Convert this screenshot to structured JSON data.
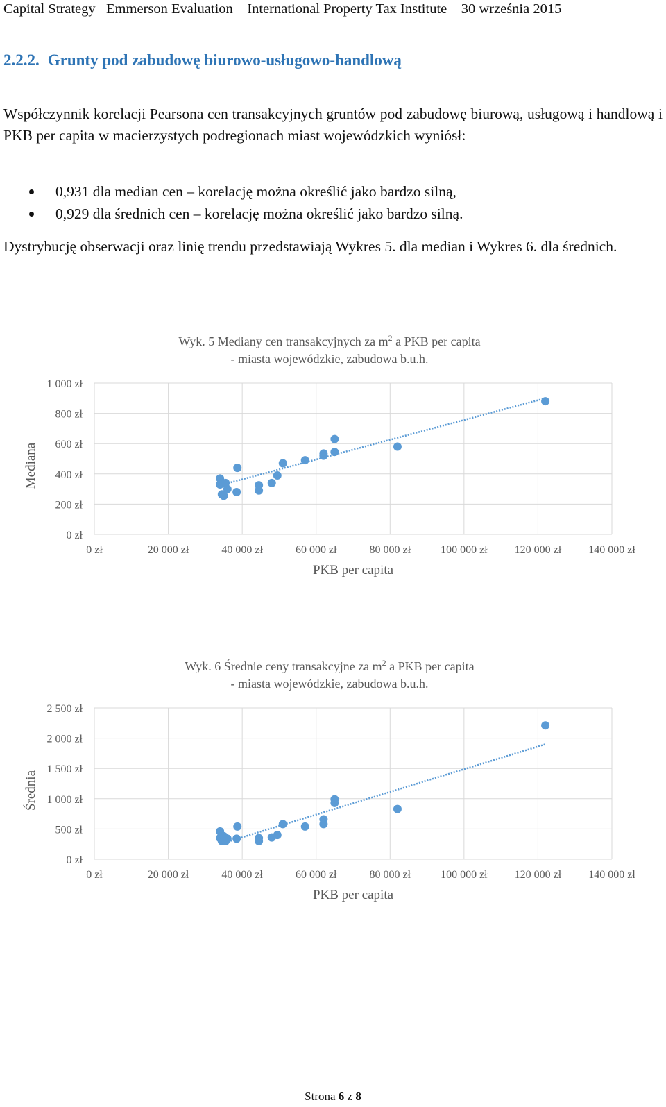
{
  "header": {
    "text": "Capital Strategy –Emmerson Evaluation – International Property Tax Institute  – 30 września 2015"
  },
  "section": {
    "number": "2.2.2.",
    "title": "Grunty pod zabudowę biurowo-usługowo-handlową"
  },
  "paragraph1": "Współczynnik korelacji Pearsona cen transakcyjnych gruntów pod zabudowę biurową, usługową i handlową i PKB per capita w macierzystych podregionach miast wojewódzkich wyniósł:",
  "bullets": [
    "0,931 dla median cen – korelację można określić jako bardzo silną,",
    "0,929 dla średnich cen – korelację można określić jako bardzo silną."
  ],
  "paragraph2": "Dystrybucję obserwacji oraz linię trendu przedstawiają Wykres 5. dla median i Wykres 6. dla średnich.",
  "footer": {
    "prefix": "Strona ",
    "page": "6",
    "middle": " z ",
    "total": "8"
  },
  "colors": {
    "section_title": "#2e74b5",
    "marker": "#5b9bd5",
    "grid": "#d9d9d9",
    "axis_text": "#595959"
  },
  "chart_data": [
    {
      "type": "scatter",
      "title_line1_before": "Wyk. 5 Mediany cen transakcyjnych za m",
      "title_sup": "2",
      "title_line1_after": " a PKB per capita",
      "title_line2": "- miasta wojewódzkie, zabudowa b.u.h.",
      "xlabel": "PKB per capita",
      "ylabel": "Mediana",
      "xlim": [
        0,
        140000
      ],
      "ylim": [
        0,
        1000
      ],
      "x_ticks": [
        0,
        20000,
        40000,
        60000,
        80000,
        100000,
        120000,
        140000
      ],
      "x_tick_labels": [
        "0 zł",
        "20 000 zł",
        "40 000 zł",
        "60 000 zł",
        "80 000 zł",
        "100 000 zł",
        "120 000 zł",
        "140 000 zł"
      ],
      "y_ticks": [
        0,
        200,
        400,
        600,
        800,
        1000
      ],
      "y_tick_labels": [
        "0 zł",
        "200 zł",
        "400 zł",
        "600 zł",
        "800 zł",
        "1 000 zł"
      ],
      "points": [
        [
          34000,
          370
        ],
        [
          34000,
          330
        ],
        [
          34500,
          265
        ],
        [
          35000,
          255
        ],
        [
          35500,
          340
        ],
        [
          36000,
          300
        ],
        [
          38500,
          280
        ],
        [
          38700,
          440
        ],
        [
          44500,
          325
        ],
        [
          44500,
          290
        ],
        [
          48000,
          340
        ],
        [
          49500,
          390
        ],
        [
          51000,
          470
        ],
        [
          57000,
          490
        ],
        [
          62000,
          535
        ],
        [
          62000,
          520
        ],
        [
          65000,
          630
        ],
        [
          65000,
          545
        ],
        [
          82000,
          580
        ],
        [
          122000,
          880
        ]
      ],
      "trendline": {
        "x": [
          34000,
          122000
        ],
        "y": [
          325,
          900
        ]
      }
    },
    {
      "type": "scatter",
      "title_line1_before": "Wyk. 6 Średnie ceny transakcyjne za m",
      "title_sup": "2",
      "title_line1_after": " a PKB per capita",
      "title_line2": "- miasta wojewódzkie, zabudowa b.u.h.",
      "xlabel": "PKB per capita",
      "ylabel": "Średnia",
      "xlim": [
        0,
        140000
      ],
      "ylim": [
        0,
        2500
      ],
      "x_ticks": [
        0,
        20000,
        40000,
        60000,
        80000,
        100000,
        120000,
        140000
      ],
      "x_tick_labels": [
        "0 zł",
        "20 000 zł",
        "40 000 zł",
        "60 000 zł",
        "80 000 zł",
        "100 000 zł",
        "120 000 zł",
        "140 000 zł"
      ],
      "y_ticks": [
        0,
        500,
        1000,
        1500,
        2000,
        2500
      ],
      "y_tick_labels": [
        "0 zł",
        "500 zł",
        "1 000 zł",
        "1 500 zł",
        "2 000 zł",
        "2 500 zł"
      ],
      "points": [
        [
          34000,
          460
        ],
        [
          34000,
          350
        ],
        [
          34500,
          300
        ],
        [
          35000,
          380
        ],
        [
          35500,
          300
        ],
        [
          36000,
          340
        ],
        [
          38500,
          340
        ],
        [
          38700,
          540
        ],
        [
          44500,
          300
        ],
        [
          44500,
          350
        ],
        [
          48000,
          360
        ],
        [
          49500,
          400
        ],
        [
          51000,
          580
        ],
        [
          57000,
          540
        ],
        [
          62000,
          660
        ],
        [
          62000,
          580
        ],
        [
          65000,
          990
        ],
        [
          65000,
          930
        ],
        [
          82000,
          830
        ],
        [
          122000,
          2210
        ]
      ],
      "trendline": {
        "x": [
          34000,
          122000
        ],
        "y": [
          250,
          1900
        ]
      }
    }
  ]
}
